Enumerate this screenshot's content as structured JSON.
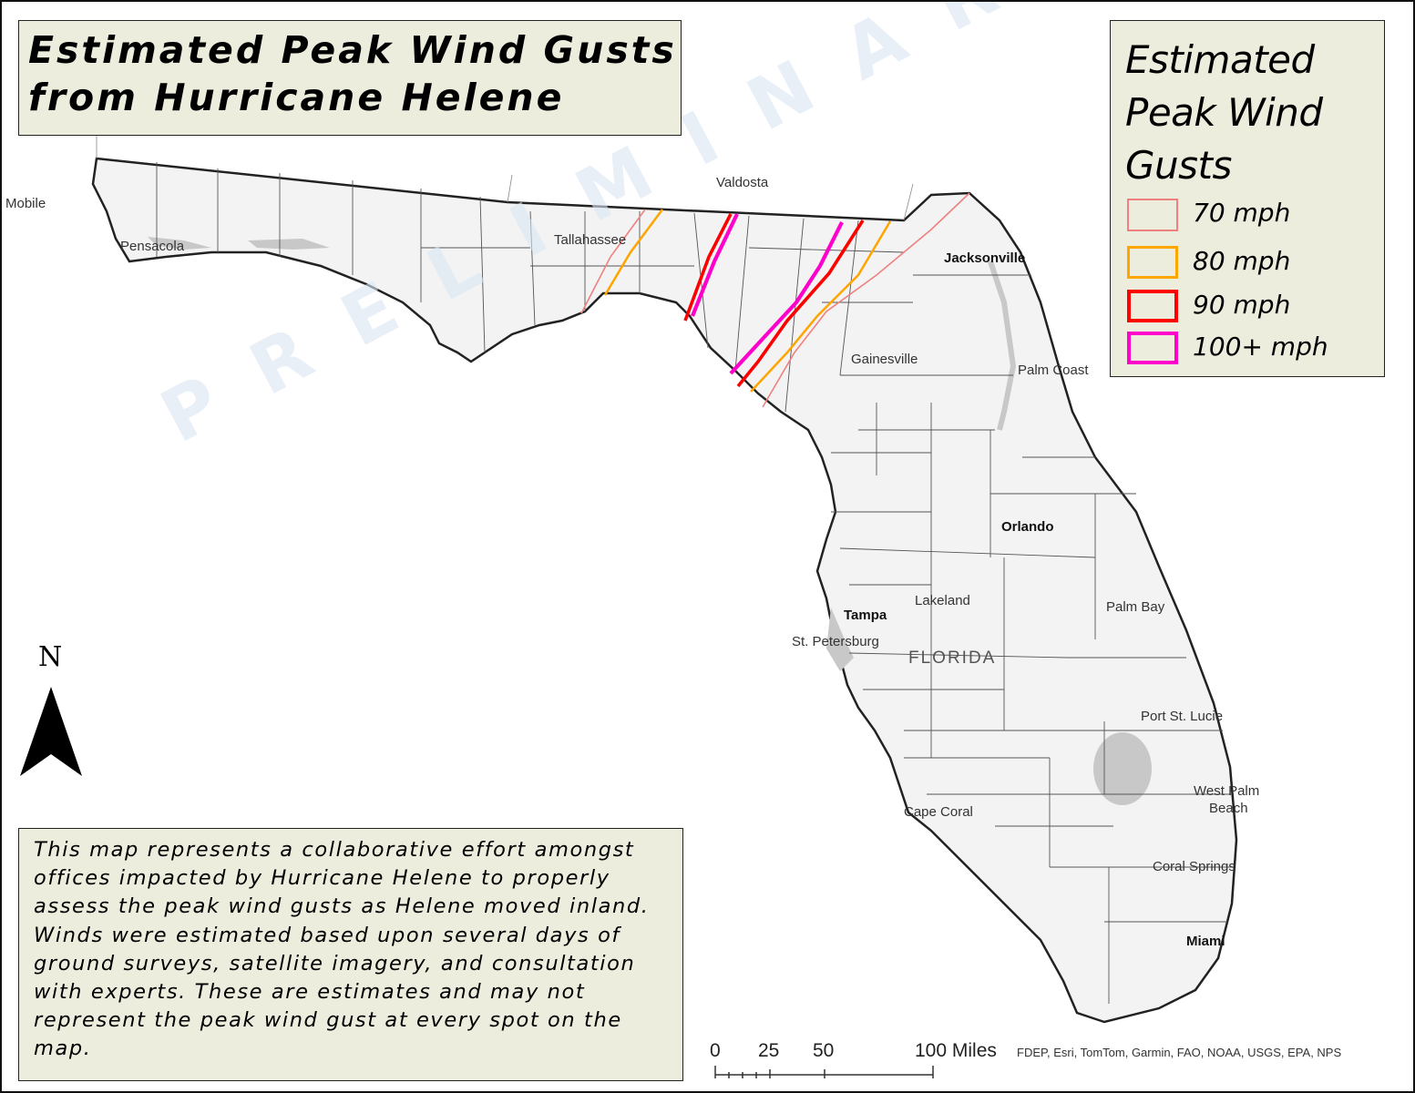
{
  "title": {
    "line1": "Estimated Peak Wind Gusts",
    "line2": "from Hurricane Helene"
  },
  "legend": {
    "title_lines": [
      "Estimated",
      "Peak Wind",
      "Gusts"
    ],
    "items": [
      {
        "label": "70 mph",
        "color": "#f08080"
      },
      {
        "label": "80 mph",
        "color": "#ffa500"
      },
      {
        "label": "90 mph",
        "color": "#ff0000"
      },
      {
        "label": "100+ mph",
        "color": "#ff00cc"
      }
    ]
  },
  "note": "This map represents a collaborative effort amongst offices impacted by Hurricane Helene to properly assess the peak wind gusts as Helene moved inland. Winds were estimated based upon several days of ground surveys, satellite imagery, and consultation with experts. These are estimates and may not represent the peak wind gust at every spot on the map.",
  "north_arrow": {
    "label": "N"
  },
  "watermark": "PRELIMINARY",
  "scale_bar": {
    "labels": [
      "0",
      "25",
      "50",
      "100 Miles"
    ]
  },
  "attribution": "FDEP, Esri, TomTom, Garmin, FAO, NOAA, USGS, EPA, NPS",
  "state_label": "FLORIDA",
  "cities": [
    {
      "name": "Mobile",
      "major": false
    },
    {
      "name": "Pensacola",
      "major": false
    },
    {
      "name": "Tallahassee",
      "major": false
    },
    {
      "name": "Valdosta",
      "major": false
    },
    {
      "name": "Jacksonville",
      "major": true
    },
    {
      "name": "Gainesville",
      "major": false
    },
    {
      "name": "Palm Coast",
      "major": false
    },
    {
      "name": "Orlando",
      "major": true
    },
    {
      "name": "Lakeland",
      "major": false
    },
    {
      "name": "Tampa",
      "major": true
    },
    {
      "name": "St. Petersburg",
      "major": false
    },
    {
      "name": "Palm Bay",
      "major": false
    },
    {
      "name": "Port St. Lucie",
      "major": false
    },
    {
      "name": "West Palm",
      "major": false
    },
    {
      "name": "Beach",
      "major": false
    },
    {
      "name": "Cape Coral",
      "major": false
    },
    {
      "name": "Coral Springs",
      "major": false
    },
    {
      "name": "Miami",
      "major": true
    }
  ],
  "colors": {
    "land": "#f3f3f3",
    "water_inland": "#c8c8c8",
    "coast": "#222222",
    "county_lines": "#555555",
    "panel_bg": "#ededde"
  }
}
